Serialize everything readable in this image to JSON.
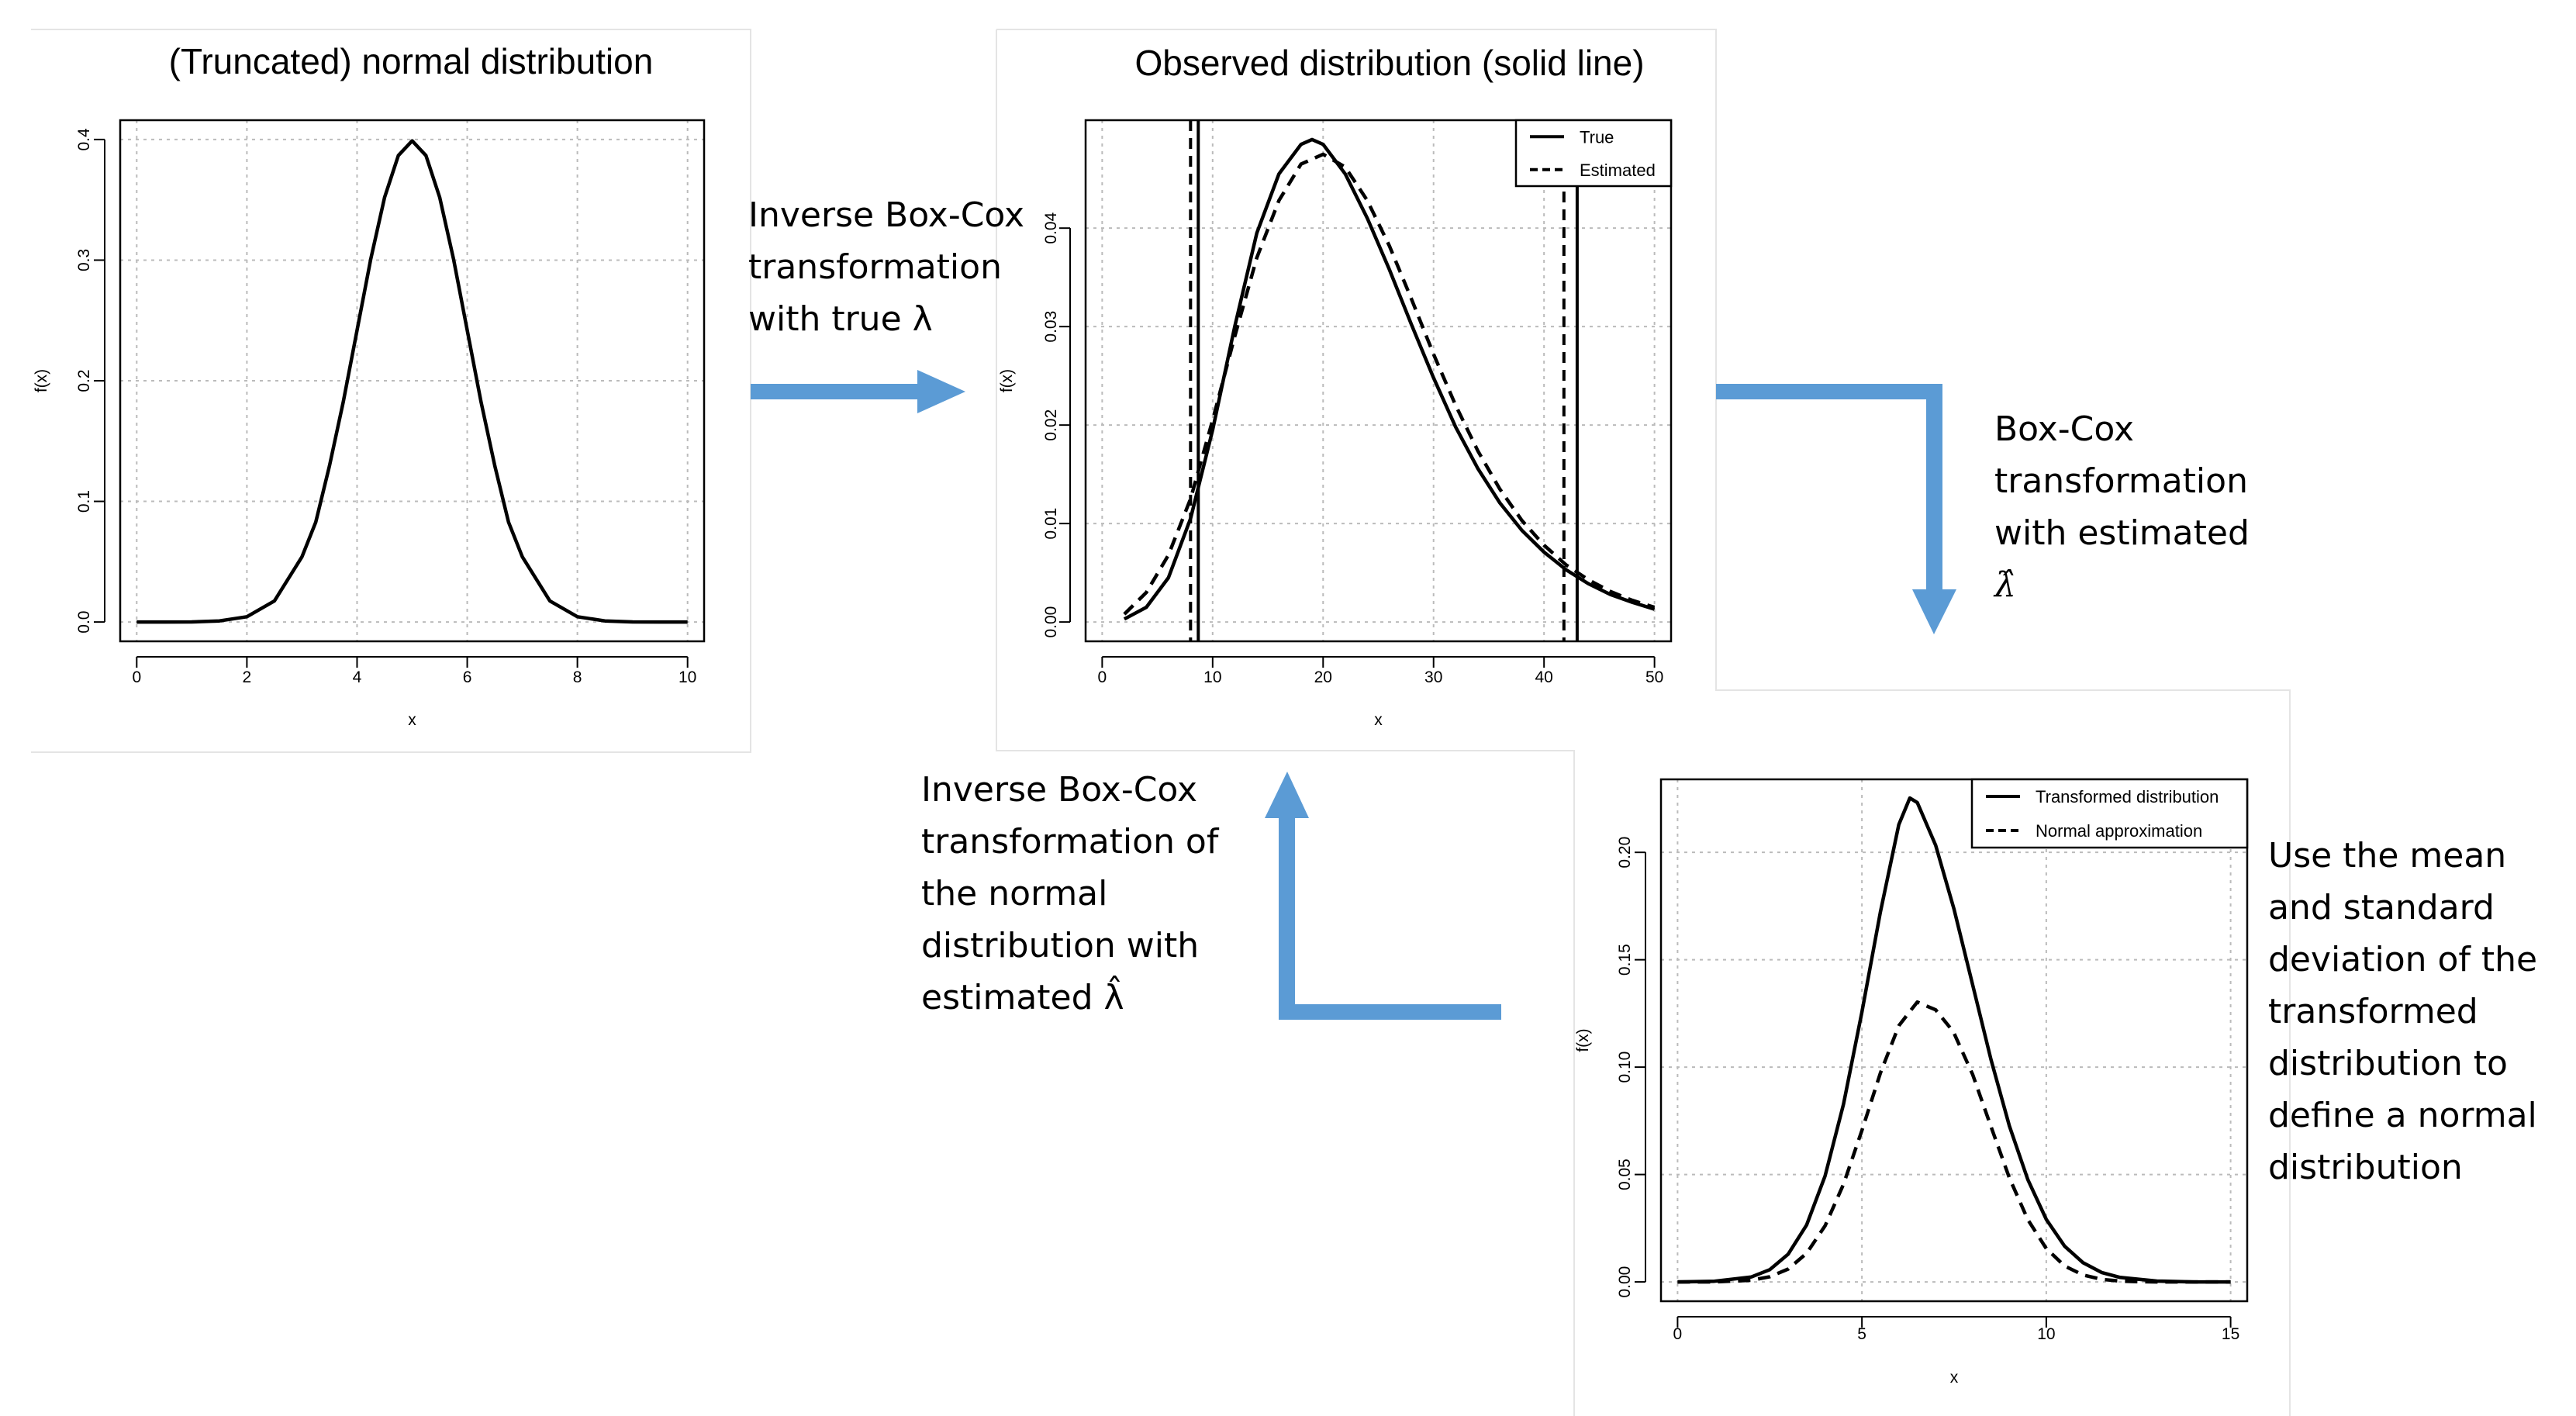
{
  "colors": {
    "arrow": "#5b9bd5",
    "grid": "#bbbbbb",
    "curve": "#000000",
    "panel_border": "#e4e4e4"
  },
  "steps": {
    "step1": [
      "Inverse Box-Cox",
      "transformation",
      "with true λ"
    ],
    "step2": [
      "Box-Cox",
      "transformation",
      "with estimated",
      "λ̂"
    ],
    "step3": [
      "Inverse Box-Cox",
      "transformation of",
      "the normal",
      "distribution with",
      "estimated λ̂"
    ],
    "step4": [
      "Use the mean",
      "and standard",
      "deviation of the",
      "transformed",
      "distribution to",
      "define a normal",
      "distribution"
    ]
  },
  "chart_data": [
    {
      "id": "c1",
      "type": "line",
      "title": "(Truncated) normal distribution",
      "xlabel": "x",
      "ylabel": "f(x)",
      "xlim": [
        0,
        10
      ],
      "ylim": [
        0,
        0.4
      ],
      "xticks": [
        0,
        2,
        4,
        6,
        8,
        10
      ],
      "yticks": [
        0.0,
        0.1,
        0.2,
        0.3,
        0.4
      ],
      "ytick_labels": [
        "0.0",
        "0.1",
        "0.2",
        "0.3",
        "0.4"
      ],
      "series": [
        {
          "name": "normal",
          "dash": "solid",
          "x": [
            0,
            0.5,
            1,
            1.5,
            2,
            2.5,
            3,
            3.25,
            3.5,
            3.75,
            4,
            4.25,
            4.5,
            4.75,
            5,
            5.25,
            5.5,
            5.75,
            6,
            6.25,
            6.5,
            6.75,
            7,
            7.5,
            8,
            8.5,
            9,
            9.5,
            10
          ],
          "y": [
            0.0,
            0.0,
            0.0001,
            0.0009,
            0.0044,
            0.0175,
            0.054,
            0.0828,
            0.1295,
            0.1826,
            0.242,
            0.3011,
            0.3521,
            0.3867,
            0.3989,
            0.3867,
            0.3521,
            0.3011,
            0.242,
            0.1826,
            0.1295,
            0.0828,
            0.054,
            0.0175,
            0.0044,
            0.0009,
            0.0001,
            0.0,
            0.0
          ]
        }
      ]
    },
    {
      "id": "c2",
      "type": "line",
      "title": "Observed distribution (solid line)",
      "xlabel": "x",
      "ylabel": "f(x)",
      "xlim": [
        0,
        50
      ],
      "ylim": [
        0,
        0.049
      ],
      "xticks": [
        0,
        10,
        20,
        30,
        40,
        50
      ],
      "yticks": [
        0.0,
        0.01,
        0.02,
        0.03,
        0.04
      ],
      "ytick_labels": [
        "0.00",
        "0.01",
        "0.02",
        "0.03",
        "0.04"
      ],
      "legend": {
        "position": "top-right",
        "entries": [
          {
            "label": "True",
            "dash": "solid"
          },
          {
            "label": "Estimated",
            "dash": "dashed"
          }
        ]
      },
      "vlines": [
        {
          "x": 8.7,
          "dash": "solid"
        },
        {
          "x": 43.0,
          "dash": "solid"
        },
        {
          "x": 8.0,
          "dash": "dashed"
        },
        {
          "x": 41.8,
          "dash": "dashed"
        }
      ],
      "series": [
        {
          "name": "True",
          "dash": "solid",
          "x": [
            2,
            4,
            6,
            8,
            10,
            12,
            14,
            16,
            18,
            19,
            20,
            22,
            24,
            26,
            28,
            30,
            32,
            34,
            36,
            38,
            40,
            42,
            44,
            46,
            48,
            50
          ],
          "y": [
            0.0003,
            0.0015,
            0.0045,
            0.0105,
            0.0195,
            0.03,
            0.0395,
            0.0455,
            0.0485,
            0.049,
            0.0485,
            0.0455,
            0.041,
            0.0358,
            0.0302,
            0.0248,
            0.0198,
            0.0156,
            0.0121,
            0.0093,
            0.0071,
            0.0053,
            0.0039,
            0.0028,
            0.002,
            0.0013
          ]
        },
        {
          "name": "Estimated",
          "dash": "dashed",
          "x": [
            2,
            4,
            6,
            8,
            10,
            12,
            14,
            16,
            18,
            20,
            22,
            24,
            26,
            28,
            30,
            32,
            34,
            36,
            38,
            40,
            42,
            44,
            46,
            48,
            50
          ],
          "y": [
            0.0008,
            0.003,
            0.0068,
            0.0125,
            0.0205,
            0.029,
            0.037,
            0.0428,
            0.0465,
            0.0475,
            0.0462,
            0.0428,
            0.0382,
            0.0328,
            0.0272,
            0.022,
            0.0174,
            0.0135,
            0.0103,
            0.0078,
            0.0058,
            0.0043,
            0.0031,
            0.0022,
            0.0015
          ]
        }
      ]
    },
    {
      "id": "c3",
      "type": "line",
      "title": "",
      "xlabel": "x",
      "ylabel": "f(x)",
      "xlim": [
        0,
        15
      ],
      "ylim": [
        0,
        0.225
      ],
      "xticks": [
        0,
        5,
        10,
        15
      ],
      "yticks": [
        0.0,
        0.05,
        0.1,
        0.15,
        0.2
      ],
      "ytick_labels": [
        "0.00",
        "0.05",
        "0.10",
        "0.15",
        "0.20"
      ],
      "legend": {
        "position": "top-right",
        "entries": [
          {
            "label": "Transformed distribution",
            "dash": "solid"
          },
          {
            "label": "Normal approximation",
            "dash": "dashed"
          }
        ]
      },
      "series": [
        {
          "name": "Transformed distribution",
          "dash": "solid",
          "x": [
            0,
            1,
            2,
            2.5,
            3,
            3.5,
            4,
            4.5,
            5,
            5.5,
            6,
            6.3,
            6.5,
            7,
            7.5,
            8,
            8.5,
            9,
            9.5,
            10,
            10.5,
            11,
            11.5,
            12,
            13,
            14,
            15
          ],
          "y": [
            0.0,
            0.0003,
            0.0023,
            0.0057,
            0.0129,
            0.0265,
            0.0493,
            0.0828,
            0.1256,
            0.1721,
            0.2129,
            0.2253,
            0.2232,
            0.2033,
            0.1734,
            0.1385,
            0.1036,
            0.0726,
            0.0476,
            0.0291,
            0.0166,
            0.0089,
            0.0044,
            0.0021,
            0.0004,
            0.0,
            0.0
          ]
        },
        {
          "name": "Normal approximation",
          "dash": "dashed",
          "x": [
            0,
            1,
            2,
            2.5,
            3,
            3.5,
            4,
            4.5,
            5,
            5.5,
            6,
            6.5,
            7,
            7.4,
            7.5,
            8,
            8.5,
            9,
            9.5,
            10,
            10.5,
            11,
            11.5,
            12,
            12.5,
            13,
            14,
            15
          ],
          "y": [
            0.0,
            0.0,
            0.0008,
            0.0024,
            0.006,
            0.0133,
            0.0261,
            0.0455,
            0.0705,
            0.0972,
            0.1193,
            0.1303,
            0.1267,
            0.1182,
            0.1157,
            0.0967,
            0.0724,
            0.0484,
            0.029,
            0.0155,
            0.0074,
            0.0032,
            0.0012,
            0.0004,
            0.0001,
            0.0,
            0.0,
            0.0
          ]
        }
      ]
    }
  ]
}
